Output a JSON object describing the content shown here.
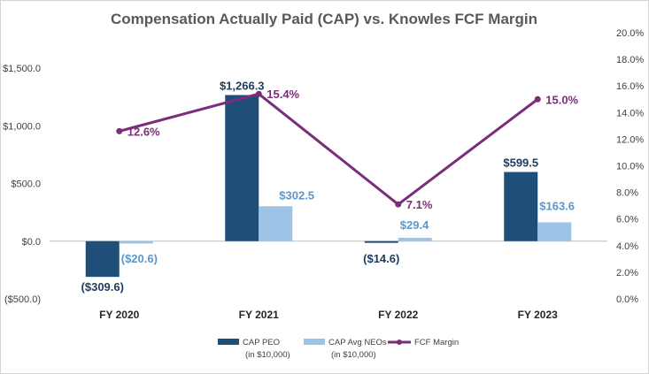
{
  "chart_data": {
    "type": "bar",
    "title": "Compensation Actually Paid (CAP) vs. Knowles FCF Margin",
    "categories": [
      "FY 2020",
      "FY 2021",
      "FY 2022",
      "FY 2023"
    ],
    "series": [
      {
        "name": "CAP PEO",
        "unit_note": "(in $10,000)",
        "kind": "bar",
        "axis": "left",
        "values": [
          -309.6,
          1266.3,
          -14.6,
          599.5
        ],
        "labels": [
          "($309.6)",
          "$1,266.3",
          "($14.6)",
          "$599.5"
        ],
        "color": "#1f4e79"
      },
      {
        "name": "CAP Avg NEOs",
        "unit_note": "(in $10,000)",
        "kind": "bar",
        "axis": "left",
        "values": [
          -20.6,
          302.5,
          29.4,
          163.6
        ],
        "labels": [
          "($20.6)",
          "$302.5",
          "$29.4",
          "$163.6"
        ],
        "color": "#9dc3e6"
      },
      {
        "name": "FCF Margin",
        "kind": "line",
        "axis": "right",
        "values": [
          12.6,
          15.4,
          7.1,
          15.0
        ],
        "labels": [
          "12.6%",
          "15.4%",
          "7.1%",
          "15.0%"
        ],
        "color": "#7b2c7b"
      }
    ],
    "y_left": {
      "range": [
        -500,
        1500
      ],
      "ticks": [
        -500,
        0,
        500,
        1000,
        1500
      ],
      "tick_labels": [
        "($500.0)",
        "$0.0",
        "$500.0",
        "$1,000.0",
        "$1,500.0"
      ]
    },
    "y_right": {
      "range": [
        0,
        20
      ],
      "ticks": [
        0,
        2,
        4,
        6,
        8,
        10,
        12,
        14,
        16,
        18,
        20
      ],
      "tick_labels": [
        "0.0%",
        "2.0%",
        "4.0%",
        "6.0%",
        "8.0%",
        "10.0%",
        "12.0%",
        "14.0%",
        "16.0%",
        "18.0%",
        "20.0%"
      ]
    },
    "grid": false,
    "legend_position": "bottom"
  }
}
